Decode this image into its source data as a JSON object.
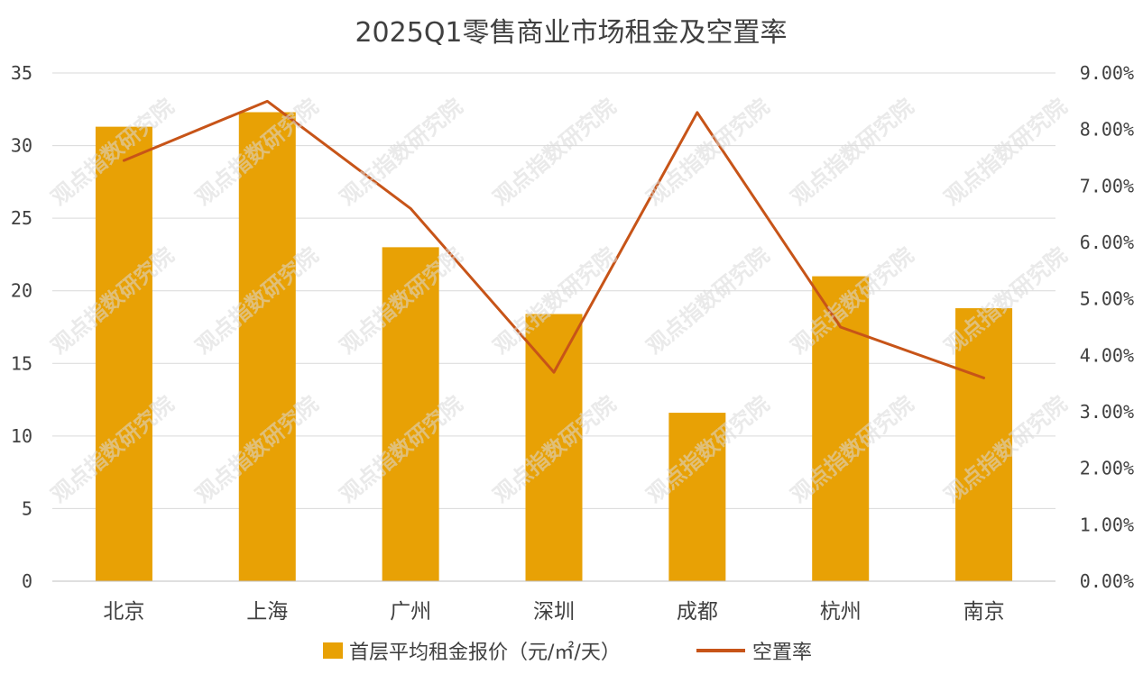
{
  "chart_data": {
    "type": "bar",
    "title": "2025Q1零售商业市场租金及空置率",
    "categories": [
      "北京",
      "上海",
      "广州",
      "深圳",
      "成都",
      "杭州",
      "南京"
    ],
    "series": [
      {
        "name": "首层平均租金报价（元/㎡/天）",
        "type": "bar",
        "axis": "left",
        "color": "#E8A105",
        "values": [
          31.3,
          32.3,
          23.0,
          18.4,
          11.6,
          21.0,
          18.8
        ]
      },
      {
        "name": "空置率",
        "type": "line",
        "axis": "right",
        "color": "#C75418",
        "values": [
          7.45,
          8.5,
          6.6,
          3.7,
          8.3,
          4.5,
          3.6
        ]
      }
    ],
    "y_left": {
      "min": 0,
      "max": 35,
      "ticks": [
        "0",
        "5",
        "10",
        "15",
        "20",
        "25",
        "30",
        "35"
      ]
    },
    "y_right": {
      "min": 0,
      "max": 9,
      "ticks": [
        "0.00%",
        "1.00%",
        "2.00%",
        "3.00%",
        "4.00%",
        "5.00%",
        "6.00%",
        "7.00%",
        "8.00%",
        "9.00%"
      ]
    },
    "grid": true,
    "legend_position": "bottom",
    "watermark": "观点指数研究院"
  },
  "colors": {
    "grid": "#D9D9D9",
    "axis_line": "#BFBFBF",
    "text": "#404040",
    "watermark": "#D8D8D8"
  }
}
